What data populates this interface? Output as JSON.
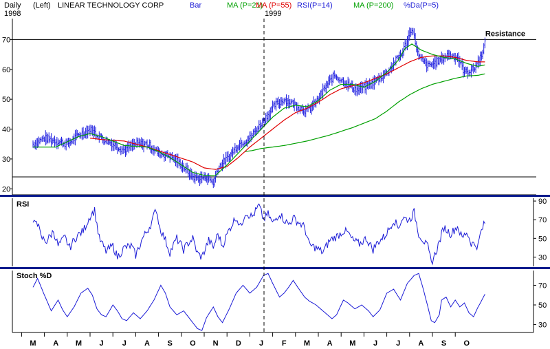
{
  "header": {
    "period": "Daily",
    "scale": "(Left)",
    "company": "LINEAR TECHNOLOGY CORP",
    "year_start": "1998",
    "year_mid": "1999",
    "legend": [
      {
        "label": "Bar",
        "color": "#1a1ad6"
      },
      {
        "label": "MA (P=21)",
        "color": "#00a000"
      },
      {
        "label": "MA (P=55)",
        "color": "#e00000"
      },
      {
        "label": "RSI(P=14)",
        "color": "#1a1ad6"
      },
      {
        "label": "MA (P=200)",
        "color": "#00a000"
      },
      {
        "label": "%Da(P=5)",
        "color": "#1a1ad6"
      }
    ]
  },
  "annotations": {
    "resistance_label": "Resistance",
    "resistance_level": 70,
    "support_level": 24
  },
  "colors": {
    "bars": "#2020e0",
    "ma21": "#00a000",
    "ma55": "#e00000",
    "ma200": "#00a000",
    "rsi": "#1a1ad6",
    "stoch": "#1a1ad6",
    "divider": "#0a1a8c"
  },
  "panels": {
    "rsi_title": "RSI",
    "stoch_title": "Stoch %D"
  },
  "chart_data": [
    {
      "type": "candlestick-bar",
      "title": "LINEAR TECHNOLOGY CORP",
      "ylim": [
        18,
        77
      ],
      "yticks": [
        20,
        30,
        40,
        50,
        60,
        70
      ],
      "months": [
        "M",
        "A",
        "M",
        "J",
        "J",
        "A",
        "S",
        "O",
        "N",
        "D",
        "J",
        "F",
        "M",
        "A",
        "M",
        "J",
        "J",
        "A",
        "S",
        "O"
      ],
      "price_anchors": [
        [
          0,
          35
        ],
        [
          0.5,
          37
        ],
        [
          1.0,
          36
        ],
        [
          1.5,
          35
        ],
        [
          2.0,
          38
        ],
        [
          2.5,
          40
        ],
        [
          3.0,
          37
        ],
        [
          3.5,
          35
        ],
        [
          4.0,
          33
        ],
        [
          4.5,
          35
        ],
        [
          5.0,
          35
        ],
        [
          5.5,
          32
        ],
        [
          6.0,
          31
        ],
        [
          6.5,
          28
        ],
        [
          7.0,
          24
        ],
        [
          7.3,
          23.5
        ],
        [
          7.6,
          24
        ],
        [
          7.9,
          22
        ],
        [
          8.1,
          27
        ],
        [
          8.6,
          31
        ],
        [
          9.0,
          35
        ],
        [
          9.5,
          37
        ],
        [
          10.0,
          42
        ],
        [
          10.3,
          45
        ],
        [
          10.6,
          48
        ],
        [
          11.0,
          50
        ],
        [
          11.5,
          48
        ],
        [
          12.0,
          46
        ],
        [
          12.4,
          49
        ],
        [
          12.8,
          54
        ],
        [
          13.2,
          58
        ],
        [
          13.6,
          56
        ],
        [
          14.2,
          53
        ],
        [
          14.8,
          55
        ],
        [
          15.5,
          59
        ],
        [
          16.2,
          66
        ],
        [
          16.6,
          74
        ],
        [
          16.9,
          64
        ],
        [
          17.3,
          61
        ],
        [
          17.8,
          63
        ],
        [
          18.2,
          65
        ],
        [
          18.6,
          64
        ],
        [
          18.9,
          59
        ],
        [
          19.3,
          60
        ],
        [
          19.6,
          64
        ],
        [
          19.8,
          69
        ]
      ],
      "ma21_anchors": [
        [
          0,
          34
        ],
        [
          1,
          34
        ],
        [
          2,
          37.5
        ],
        [
          2.5,
          38.5
        ],
        [
          3,
          37.5
        ],
        [
          4,
          34.5
        ],
        [
          5,
          34
        ],
        [
          5.5,
          32.5
        ],
        [
          6,
          30.5
        ],
        [
          6.5,
          28
        ],
        [
          7,
          25.5
        ],
        [
          7.5,
          24.5
        ],
        [
          8,
          24.5
        ],
        [
          8.5,
          28
        ],
        [
          9,
          32
        ],
        [
          9.5,
          36
        ],
        [
          10,
          40
        ],
        [
          10.5,
          44
        ],
        [
          11,
          47
        ],
        [
          11.5,
          48
        ],
        [
          12,
          47.5
        ],
        [
          12.5,
          49.5
        ],
        [
          13,
          53
        ],
        [
          13.5,
          55
        ],
        [
          14,
          55
        ],
        [
          14.5,
          54
        ],
        [
          15,
          56
        ],
        [
          15.5,
          59
        ],
        [
          16,
          63
        ],
        [
          16.3,
          67
        ],
        [
          16.6,
          68.5
        ],
        [
          17,
          66.5
        ],
        [
          17.5,
          65
        ],
        [
          18,
          64
        ],
        [
          18.5,
          63.5
        ],
        [
          19,
          62
        ],
        [
          19.5,
          61
        ],
        [
          19.8,
          61.5
        ]
      ],
      "ma55_anchors": [
        [
          2.5,
          37
        ],
        [
          3,
          36.5
        ],
        [
          4,
          36
        ],
        [
          5,
          34
        ],
        [
          6,
          31.5
        ],
        [
          7,
          29
        ],
        [
          7.5,
          27
        ],
        [
          8,
          26.5
        ],
        [
          8.5,
          27.5
        ],
        [
          9,
          30.5
        ],
        [
          9.5,
          34
        ],
        [
          10,
          37
        ],
        [
          10.5,
          40
        ],
        [
          11,
          43
        ],
        [
          11.5,
          45.5
        ],
        [
          12,
          47
        ],
        [
          12.5,
          49
        ],
        [
          13,
          51.5
        ],
        [
          13.5,
          53.5
        ],
        [
          14,
          54.5
        ],
        [
          14.5,
          55.5
        ],
        [
          15,
          57
        ],
        [
          15.5,
          58.5
        ],
        [
          16,
          60.5
        ],
        [
          16.5,
          62.5
        ],
        [
          17,
          64
        ],
        [
          17.5,
          64.5
        ],
        [
          18,
          64.5
        ],
        [
          18.5,
          64
        ],
        [
          19,
          63
        ],
        [
          19.5,
          62.5
        ],
        [
          19.8,
          62.5
        ]
      ],
      "ma200_anchors": [
        [
          9.3,
          32.5
        ],
        [
          9.6,
          32.8
        ],
        [
          10,
          33.5
        ],
        [
          11,
          34.5
        ],
        [
          12,
          36
        ],
        [
          13,
          38
        ],
        [
          14,
          40.5
        ],
        [
          15,
          43.5
        ],
        [
          15.5,
          46
        ],
        [
          16,
          49
        ],
        [
          16.5,
          51.5
        ],
        [
          17,
          53.5
        ],
        [
          17.5,
          55
        ],
        [
          18,
          56
        ],
        [
          18.5,
          57
        ],
        [
          19,
          57.8
        ],
        [
          19.5,
          58
        ],
        [
          19.8,
          58.5
        ]
      ]
    },
    {
      "type": "line",
      "title": "RSI",
      "ylim": [
        20,
        93
      ],
      "yticks": [
        30,
        50,
        70,
        90
      ],
      "anchors": [
        [
          0,
          63
        ],
        [
          0.15,
          72
        ],
        [
          0.35,
          51
        ],
        [
          0.6,
          47
        ],
        [
          0.9,
          58
        ],
        [
          1.1,
          42
        ],
        [
          1.4,
          51
        ],
        [
          1.6,
          40
        ],
        [
          1.9,
          52
        ],
        [
          2.2,
          58
        ],
        [
          2.5,
          74
        ],
        [
          2.7,
          80
        ],
        [
          2.9,
          50
        ],
        [
          3.2,
          36
        ],
        [
          3.5,
          42
        ],
        [
          3.7,
          30
        ],
        [
          4.0,
          40
        ],
        [
          4.3,
          42
        ],
        [
          4.5,
          32
        ],
        [
          4.8,
          50
        ],
        [
          5.0,
          58
        ],
        [
          5.2,
          67
        ],
        [
          5.4,
          82
        ],
        [
          5.55,
          62
        ],
        [
          5.8,
          48
        ],
        [
          6.0,
          35
        ],
        [
          6.3,
          50
        ],
        [
          6.6,
          38
        ],
        [
          6.8,
          45
        ],
        [
          7.0,
          50
        ],
        [
          7.2,
          34
        ],
        [
          7.4,
          30
        ],
        [
          7.7,
          48
        ],
        [
          7.9,
          40
        ],
        [
          8.1,
          55
        ],
        [
          8.3,
          42
        ],
        [
          8.6,
          60
        ],
        [
          8.9,
          73
        ],
        [
          9.1,
          62
        ],
        [
          9.3,
          78
        ],
        [
          9.6,
          73
        ],
        [
          9.9,
          85
        ],
        [
          10.1,
          70
        ],
        [
          10.3,
          76
        ],
        [
          10.5,
          66
        ],
        [
          10.8,
          77
        ],
        [
          11.0,
          70
        ],
        [
          11.2,
          65
        ],
        [
          11.4,
          72
        ],
        [
          11.7,
          66
        ],
        [
          11.9,
          62
        ],
        [
          12.1,
          43
        ],
        [
          12.4,
          40
        ],
        [
          12.7,
          35
        ],
        [
          13.0,
          48
        ],
        [
          13.3,
          52
        ],
        [
          13.6,
          58
        ],
        [
          13.8,
          56
        ],
        [
          14.0,
          48
        ],
        [
          14.3,
          44
        ],
        [
          14.6,
          50
        ],
        [
          14.9,
          38
        ],
        [
          15.1,
          46
        ],
        [
          15.4,
          52
        ],
        [
          15.6,
          60
        ],
        [
          15.8,
          70
        ],
        [
          16.0,
          62
        ],
        [
          16.2,
          72
        ],
        [
          16.5,
          70
        ],
        [
          16.7,
          78
        ],
        [
          16.9,
          55
        ],
        [
          17.1,
          48
        ],
        [
          17.3,
          40
        ],
        [
          17.45,
          24
        ],
        [
          17.6,
          32
        ],
        [
          17.8,
          46
        ],
        [
          18.0,
          62
        ],
        [
          18.3,
          55
        ],
        [
          18.6,
          63
        ],
        [
          18.8,
          50
        ],
        [
          19.0,
          57
        ],
        [
          19.2,
          45
        ],
        [
          19.5,
          42
        ],
        [
          19.6,
          55
        ],
        [
          19.8,
          67
        ]
      ]
    },
    {
      "type": "line",
      "title": "Stoch %D",
      "ylim": [
        22,
        85
      ],
      "yticks": [
        30,
        50,
        70
      ],
      "anchors": [
        [
          0,
          68
        ],
        [
          0.2,
          77
        ],
        [
          0.5,
          60
        ],
        [
          0.8,
          44
        ],
        [
          1.1,
          55
        ],
        [
          1.3,
          45
        ],
        [
          1.5,
          38
        ],
        [
          1.8,
          48
        ],
        [
          2.1,
          62
        ],
        [
          2.4,
          67
        ],
        [
          2.6,
          60
        ],
        [
          2.8,
          46
        ],
        [
          3.0,
          40
        ],
        [
          3.2,
          38
        ],
        [
          3.5,
          50
        ],
        [
          3.7,
          44
        ],
        [
          3.9,
          36
        ],
        [
          4.1,
          34
        ],
        [
          4.4,
          42
        ],
        [
          4.7,
          36
        ],
        [
          5.0,
          44
        ],
        [
          5.3,
          55
        ],
        [
          5.6,
          70
        ],
        [
          5.8,
          62
        ],
        [
          6.0,
          48
        ],
        [
          6.3,
          40
        ],
        [
          6.6,
          44
        ],
        [
          6.9,
          35
        ],
        [
          7.2,
          26
        ],
        [
          7.4,
          24
        ],
        [
          7.6,
          37
        ],
        [
          7.9,
          48
        ],
        [
          8.1,
          38
        ],
        [
          8.3,
          32
        ],
        [
          8.6,
          46
        ],
        [
          8.9,
          62
        ],
        [
          9.2,
          70
        ],
        [
          9.5,
          62
        ],
        [
          9.8,
          68
        ],
        [
          10.1,
          80
        ],
        [
          10.3,
          82
        ],
        [
          10.5,
          72
        ],
        [
          10.8,
          58
        ],
        [
          11.0,
          62
        ],
        [
          11.2,
          68
        ],
        [
          11.4,
          75
        ],
        [
          11.6,
          68
        ],
        [
          11.9,
          58
        ],
        [
          12.1,
          54
        ],
        [
          12.4,
          50
        ],
        [
          12.7,
          44
        ],
        [
          12.9,
          40
        ],
        [
          13.1,
          36
        ],
        [
          13.3,
          40
        ],
        [
          13.6,
          55
        ],
        [
          13.8,
          52
        ],
        [
          14.1,
          46
        ],
        [
          14.4,
          50
        ],
        [
          14.7,
          44
        ],
        [
          14.9,
          38
        ],
        [
          15.2,
          45
        ],
        [
          15.5,
          62
        ],
        [
          15.8,
          66
        ],
        [
          16.1,
          55
        ],
        [
          16.4,
          72
        ],
        [
          16.7,
          80
        ],
        [
          16.9,
          82
        ],
        [
          17.1,
          66
        ],
        [
          17.3,
          48
        ],
        [
          17.45,
          34
        ],
        [
          17.6,
          32
        ],
        [
          17.8,
          40
        ],
        [
          17.9,
          55
        ],
        [
          18.1,
          58
        ],
        [
          18.3,
          48
        ],
        [
          18.5,
          55
        ],
        [
          18.7,
          48
        ],
        [
          18.9,
          52
        ],
        [
          19.1,
          42
        ],
        [
          19.3,
          38
        ],
        [
          19.5,
          48
        ],
        [
          19.6,
          52
        ],
        [
          19.8,
          61
        ]
      ]
    }
  ]
}
